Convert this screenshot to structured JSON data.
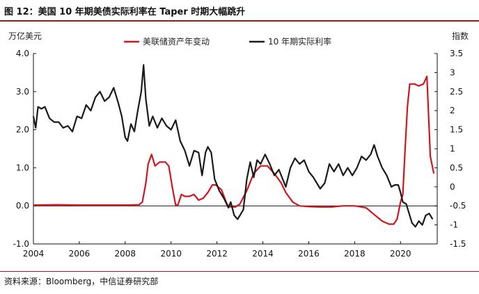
{
  "title": "图 12：美国 10 年期美债实际利率在 Taper 时期大幅跳升",
  "source": "资料来源：Bloomberg，中信证券研究部",
  "colors": {
    "accent": "#a3141c",
    "series_red": "#d2141e",
    "series_black": "#1a1a1a"
  },
  "chart_data": {
    "type": "line",
    "title": "",
    "ylabel_left": "万亿美元",
    "ylabel_right": "指数",
    "xlim": [
      2004,
      2021.6
    ],
    "ylim_left": [
      -1.0,
      4.0
    ],
    "ylim_right": [
      -1.5,
      3.5
    ],
    "x_ticks": [
      2004,
      2006,
      2008,
      2010,
      2012,
      2014,
      2016,
      2018,
      2020
    ],
    "y_ticks_left": [
      "-1.0",
      "0.0",
      "1.0",
      "2.0",
      "3.0",
      "4.0"
    ],
    "y_ticks_right": [
      "-1.5",
      "-1",
      "-0.5",
      "0",
      "0.5",
      "1",
      "1.5",
      "2",
      "2.5",
      "3",
      "3.5"
    ],
    "legend_position": "top",
    "grid": false,
    "series": [
      {
        "name": "美联储资产年变动",
        "axis": "left",
        "color": "#d2141e",
        "points": [
          [
            2004,
            0.02
          ],
          [
            2005,
            0.03
          ],
          [
            2006,
            0.02
          ],
          [
            2007,
            0.02
          ],
          [
            2008,
            0.02
          ],
          [
            2008.6,
            0.03
          ],
          [
            2008.75,
            0.1
          ],
          [
            2008.9,
            0.6
          ],
          [
            2009.0,
            1.1
          ],
          [
            2009.15,
            1.35
          ],
          [
            2009.3,
            1.05
          ],
          [
            2009.5,
            1.15
          ],
          [
            2009.75,
            1.15
          ],
          [
            2009.9,
            1.05
          ],
          [
            2010.05,
            0.5
          ],
          [
            2010.2,
            0.02
          ],
          [
            2010.3,
            0.03
          ],
          [
            2010.45,
            0.3
          ],
          [
            2010.6,
            0.25
          ],
          [
            2010.8,
            0.25
          ],
          [
            2011.0,
            0.3
          ],
          [
            2011.2,
            0.15
          ],
          [
            2011.4,
            0.2
          ],
          [
            2011.6,
            0.35
          ],
          [
            2011.8,
            0.55
          ],
          [
            2011.95,
            0.55
          ],
          [
            2012.2,
            0.42
          ],
          [
            2012.4,
            0.1
          ],
          [
            2012.5,
            -0.02
          ],
          [
            2012.8,
            -0.03
          ],
          [
            2013.0,
            0.05
          ],
          [
            2013.3,
            0.4
          ],
          [
            2013.6,
            0.85
          ],
          [
            2013.9,
            1.05
          ],
          [
            2014.2,
            1.05
          ],
          [
            2014.5,
            0.85
          ],
          [
            2014.8,
            0.6
          ],
          [
            2015.0,
            0.35
          ],
          [
            2015.3,
            0.1
          ],
          [
            2015.6,
            0.0
          ],
          [
            2016.0,
            -0.02
          ],
          [
            2016.5,
            -0.03
          ],
          [
            2017.0,
            -0.03
          ],
          [
            2017.5,
            0.0
          ],
          [
            2018.0,
            0.0
          ],
          [
            2018.5,
            -0.05
          ],
          [
            2018.8,
            -0.2
          ],
          [
            2019.2,
            -0.4
          ],
          [
            2019.5,
            -0.48
          ],
          [
            2019.7,
            -0.48
          ],
          [
            2019.85,
            -0.35
          ],
          [
            2020.0,
            0.1
          ],
          [
            2020.1,
            0.3
          ],
          [
            2020.2,
            1.5
          ],
          [
            2020.3,
            2.6
          ],
          [
            2020.4,
            3.2
          ],
          [
            2020.6,
            3.2
          ],
          [
            2020.8,
            3.15
          ],
          [
            2021.0,
            3.2
          ],
          [
            2021.15,
            3.4
          ],
          [
            2021.3,
            1.3
          ],
          [
            2021.45,
            0.85
          ]
        ]
      },
      {
        "name": "10 年期实际利率",
        "axis": "right",
        "color": "#1a1a1a",
        "points": [
          [
            2004.0,
            1.85
          ],
          [
            2004.1,
            1.55
          ],
          [
            2004.2,
            2.1
          ],
          [
            2004.35,
            2.05
          ],
          [
            2004.5,
            2.1
          ],
          [
            2004.7,
            1.8
          ],
          [
            2004.9,
            1.7
          ],
          [
            2005.1,
            1.7
          ],
          [
            2005.3,
            1.55
          ],
          [
            2005.5,
            1.6
          ],
          [
            2005.7,
            1.45
          ],
          [
            2005.9,
            1.85
          ],
          [
            2006.1,
            1.8
          ],
          [
            2006.3,
            2.15
          ],
          [
            2006.5,
            2.0
          ],
          [
            2006.7,
            2.35
          ],
          [
            2006.9,
            2.5
          ],
          [
            2007.1,
            2.25
          ],
          [
            2007.3,
            2.35
          ],
          [
            2007.5,
            2.6
          ],
          [
            2007.7,
            2.2
          ],
          [
            2007.85,
            1.85
          ],
          [
            2008.0,
            1.3
          ],
          [
            2008.1,
            1.2
          ],
          [
            2008.25,
            1.65
          ],
          [
            2008.4,
            1.45
          ],
          [
            2008.55,
            2.0
          ],
          [
            2008.7,
            2.5
          ],
          [
            2008.8,
            3.2
          ],
          [
            2008.9,
            2.3
          ],
          [
            2009.05,
            1.6
          ],
          [
            2009.2,
            1.85
          ],
          [
            2009.4,
            1.55
          ],
          [
            2009.6,
            1.8
          ],
          [
            2009.8,
            1.6
          ],
          [
            2010.0,
            1.5
          ],
          [
            2010.2,
            1.75
          ],
          [
            2010.4,
            1.2
          ],
          [
            2010.6,
            0.95
          ],
          [
            2010.8,
            0.55
          ],
          [
            2011.0,
            0.95
          ],
          [
            2011.2,
            0.9
          ],
          [
            2011.35,
            0.3
          ],
          [
            2011.5,
            0.9
          ],
          [
            2011.6,
            1.05
          ],
          [
            2011.75,
            0.9
          ],
          [
            2011.9,
            0.2
          ],
          [
            2012.1,
            -0.1
          ],
          [
            2012.3,
            -0.3
          ],
          [
            2012.5,
            -0.55
          ],
          [
            2012.6,
            -0.4
          ],
          [
            2012.75,
            -0.75
          ],
          [
            2012.9,
            -0.85
          ],
          [
            2013.0,
            -0.75
          ],
          [
            2013.15,
            -0.6
          ],
          [
            2013.3,
            0.2
          ],
          [
            2013.45,
            0.65
          ],
          [
            2013.6,
            0.25
          ],
          [
            2013.75,
            0.7
          ],
          [
            2013.9,
            0.6
          ],
          [
            2014.1,
            0.85
          ],
          [
            2014.3,
            0.6
          ],
          [
            2014.5,
            0.3
          ],
          [
            2014.7,
            0.45
          ],
          [
            2014.9,
            0.15
          ],
          [
            2015.0,
            0.0
          ],
          [
            2015.2,
            0.5
          ],
          [
            2015.4,
            0.75
          ],
          [
            2015.6,
            0.6
          ],
          [
            2015.8,
            0.7
          ],
          [
            2016.0,
            0.4
          ],
          [
            2016.2,
            0.25
          ],
          [
            2016.5,
            -0.05
          ],
          [
            2016.7,
            0.1
          ],
          [
            2016.9,
            0.6
          ],
          [
            2017.1,
            0.4
          ],
          [
            2017.3,
            0.6
          ],
          [
            2017.5,
            0.3
          ],
          [
            2017.7,
            0.5
          ],
          [
            2017.9,
            0.3
          ],
          [
            2018.1,
            0.5
          ],
          [
            2018.3,
            0.8
          ],
          [
            2018.5,
            0.7
          ],
          [
            2018.7,
            0.85
          ],
          [
            2018.85,
            1.1
          ],
          [
            2019.0,
            0.8
          ],
          [
            2019.2,
            0.5
          ],
          [
            2019.4,
            0.3
          ],
          [
            2019.6,
            0.0
          ],
          [
            2019.75,
            0.05
          ],
          [
            2019.9,
            0.05
          ],
          [
            2020.0,
            -0.15
          ],
          [
            2020.1,
            -0.4
          ],
          [
            2020.25,
            -0.45
          ],
          [
            2020.35,
            -0.65
          ],
          [
            2020.5,
            -0.95
          ],
          [
            2020.65,
            -1.05
          ],
          [
            2020.8,
            -0.9
          ],
          [
            2020.95,
            -1.0
          ],
          [
            2021.1,
            -0.75
          ],
          [
            2021.25,
            -0.7
          ],
          [
            2021.4,
            -0.85
          ]
        ]
      }
    ]
  }
}
